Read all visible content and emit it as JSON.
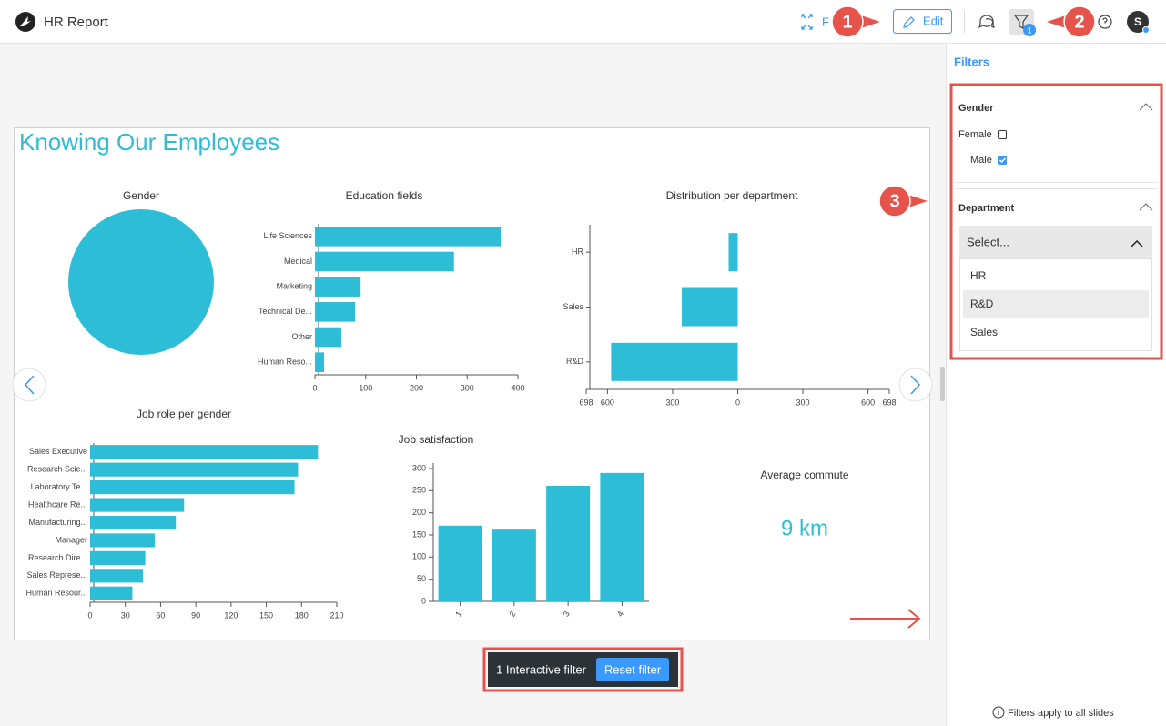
{
  "header": {
    "title": "HR Report",
    "fullscreen_label": "F",
    "edit_label": "Edit",
    "filter_badge": "1",
    "avatar": "S"
  },
  "callouts": [
    "1",
    "2",
    "3"
  ],
  "slide": {
    "title": "Knowing Our Employees",
    "kpi": {
      "title": "Average commute",
      "value": "9 km"
    }
  },
  "chart_data": [
    {
      "type": "pie",
      "title": "Gender",
      "categories": [
        null
      ],
      "values": [
        100
      ],
      "color": "#2ebdd6"
    },
    {
      "type": "bar",
      "horizontal": true,
      "title": "Education fields",
      "categories": [
        "Life Sciences",
        "Medical",
        "Marketing",
        "Technical De...",
        "Other",
        "Human Reso..."
      ],
      "values": [
        366,
        274,
        90,
        79,
        52,
        18
      ],
      "color": "#2ebdd6",
      "xlim": [
        0,
        400
      ],
      "xticks": [
        0,
        100,
        200,
        300,
        400
      ]
    },
    {
      "type": "bar",
      "horizontal": true,
      "title": "Distribution per department",
      "categories": [
        "HR",
        "Sales",
        "R&D"
      ],
      "values": [
        -42,
        -258,
        -583
      ],
      "color": "#2ebdd6",
      "xlim": [
        -698,
        698
      ],
      "xticks": [
        {
          "value": -698,
          "label": "698"
        },
        {
          "value": -600,
          "label": "600"
        },
        {
          "value": -300,
          "label": "300"
        },
        0,
        300,
        600,
        698
      ]
    },
    {
      "type": "bar",
      "horizontal": true,
      "title": "Job role per gender",
      "categories": [
        "Sales Executive",
        "Research Scie...",
        "Laboratory Te...",
        "Healthcare Re...",
        "Manufacturing...",
        "Manager",
        "Research Dire...",
        "Sales Represe...",
        "Human Resour..."
      ],
      "values": [
        194,
        177,
        174,
        80,
        73,
        55,
        47,
        45,
        36
      ],
      "color": "#2ebdd6",
      "xlim": [
        0,
        210
      ],
      "xticks": [
        0,
        30,
        60,
        90,
        120,
        150,
        180,
        210
      ]
    },
    {
      "type": "bar",
      "horizontal": false,
      "title": "Job satisfaction",
      "categories": [
        "1",
        "2",
        "3",
        "4"
      ],
      "values": [
        171,
        162,
        261,
        290
      ],
      "color": "#2ebdd6",
      "ylim": [
        0,
        300
      ],
      "yticks": [
        0,
        50,
        100,
        150,
        200,
        250,
        300
      ]
    }
  ],
  "filter_bar": {
    "label": "1 Interactive filter",
    "button": "Reset filter"
  },
  "filters": {
    "title": "Filters",
    "gender": {
      "label": "Gender",
      "options": [
        {
          "label": "Female",
          "checked": false
        },
        {
          "label": "Male",
          "checked": true
        }
      ]
    },
    "department": {
      "label": "Department",
      "placeholder": "Select...",
      "options": [
        "HR",
        "R&D",
        "Sales"
      ],
      "highlighted": 1
    },
    "footer": "Filters apply to all slides"
  }
}
